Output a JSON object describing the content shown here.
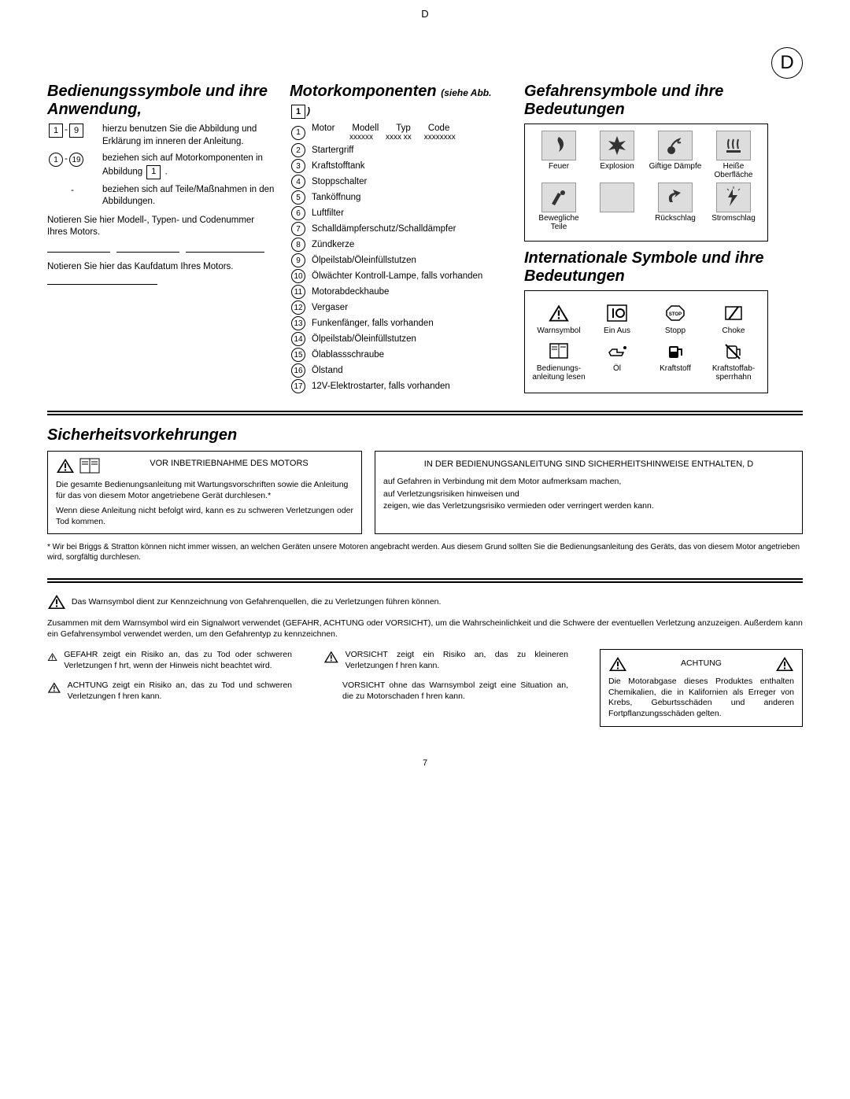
{
  "page": {
    "header_letter": "D",
    "lang_badge": "D",
    "page_number": "7"
  },
  "col1": {
    "title": "Bedienungssymbole und ihre Anwendung,",
    "rows": [
      {
        "range_markup": "sq",
        "from": "1",
        "to": "9",
        "text": "hierzu benutzen Sie die Abbildung und Erklärung im inneren der Anleitung."
      },
      {
        "range_markup": "circ",
        "from": "1",
        "to": "19",
        "text": "beziehen sich auf Motorkomponenten in Abbildung"
      },
      {
        "range_markup": "dash",
        "from": "-",
        "to": "",
        "text": "beziehen sich auf Teile/Maßnahmen in den Abbildungen."
      }
    ],
    "abbildung_ref": "1",
    "note1": "Notieren Sie hier Modell-, Typen- und Codenummer Ihres Motors.",
    "note2": "Notieren Sie hier das Kaufdatum Ihres Motors."
  },
  "col2": {
    "title": "Motorkomponenten",
    "subtitle": "(siehe Abb.",
    "subtitle_ref": "1",
    "header": [
      "Motor",
      "Modell",
      "Typ",
      "Code"
    ],
    "header2": [
      "",
      "xxxxxx",
      "xxxx xx",
      "xxxxxxxx"
    ],
    "items": [
      "Motor",
      "Startergriff",
      "Kraftstofftank",
      "Stoppschalter",
      "Tanköffnung",
      "Luftfilter",
      "Schalldämpferschutz/Schalldämpfer",
      "Zündkerze",
      "Ölpeilstab/Öleinfüllstutzen",
      "Ölwächter    Kontroll-Lampe, falls vorhanden",
      "Motorabdeckhaube",
      "Vergaser",
      "Funkenfänger, falls vorhanden",
      "Ölpeilstab/Öleinfüllstutzen",
      "Ölablassschraube",
      "Ölstand",
      "12V-Elektrostarter, falls vorhanden"
    ]
  },
  "col3": {
    "hazard_title": "Gefahrensymbole und ihre Bedeutungen",
    "hazards_row1": [
      "Feuer",
      "Explosion",
      "Giftige Dämpfe",
      "Heiße Oberfläche"
    ],
    "hazards_row2": [
      "Bewegliche Teile",
      "",
      "Rückschlag",
      "Stromschlag"
    ],
    "intl_title": "Internationale Symbole und ihre Bedeutungen",
    "intl_row1": [
      "Warnsymbol",
      "Ein Aus",
      "Stopp",
      "Choke"
    ],
    "intl_row2": [
      "Bedienungs-anleitung lesen",
      "Öl",
      "Kraftstoff",
      "Kraftstoffab-sperrhahn"
    ]
  },
  "safety": {
    "title": "Sicherheitsvorkehrungen",
    "box1_head": "VOR INBETRIEBNAHME DES MOTORS",
    "box1_p1": "Die gesamte Bedienungsanleitung mit Wartungsvorschriften sowie die Anleitung für das von diesem Motor angetriebene Gerät durchlesen.*",
    "box1_p2": "Wenn diese Anleitung nicht befolgt wird, kann es zu schweren Verletzungen oder Tod kommen.",
    "box2_head": "IN DER BEDIENUNGSANLEITUNG SIND SICHERHEITSHINWEISE ENTHALTEN, D",
    "box2_l1": "auf Gefahren in Verbindung mit dem Motor aufmerksam machen,",
    "box2_l2": "auf Verletzungsrisiken hinweisen und",
    "box2_l3": "zeigen, wie das Verletzungsrisiko vermieden oder verringert werden kann.",
    "footnote": "* Wir bei Briggs & Stratton können nicht immer wissen, an welchen Geräten unsere Motoren angebracht werden. Aus diesem Grund sollten Sie die Bedienungsanleitung des Geräts, das von diesem Motor angetrieben wird, sorgfältig durchlesen.",
    "warn_p1": "Das Warnsymbol dient zur Kennzeichnung von Gefahrenquellen, die zu Verletzungen führen können.",
    "warn_p2": "Zusammen mit dem Warnsymbol wird ein Signalwort verwendet (GEFAHR, ACHTUNG oder VORSICHT), um die Wahrscheinlichkeit und die Schwere der eventuellen Verletzung anzuzeigen. Außerdem kann ein Gefahrensymbol verwendet werden, um den Gefahrentyp zu kennzeichnen.",
    "gefahr": "GEFAHR zeigt ein Risiko an, das zu Tod oder schweren Verletzungen f hrt, wenn der Hinweis nicht beachtet wird.",
    "achtung1": "ACHTUNG zeigt ein Risiko an, das zu Tod und schweren Verletzungen f hren kann.",
    "vorsicht1": "VORSICHT zeigt ein Risiko an, das zu kleineren Verletzungen f hren kann.",
    "vorsicht2": "VORSICHT ohne das Warnsymbol zeigt eine Situation an, die zu Motorschaden f hren kann.",
    "achtung_box_title": "ACHTUNG",
    "achtung_box_text": "Die Motorabgase dieses Produktes enthalten Chemikalien, die in Kalifornien als Erreger von Krebs, Geburtsschäden und anderen Fortpflanzungsschäden gelten."
  },
  "colors": {
    "bg": "#ffffff",
    "icon_bg": "#dddddd",
    "text": "#000000"
  }
}
